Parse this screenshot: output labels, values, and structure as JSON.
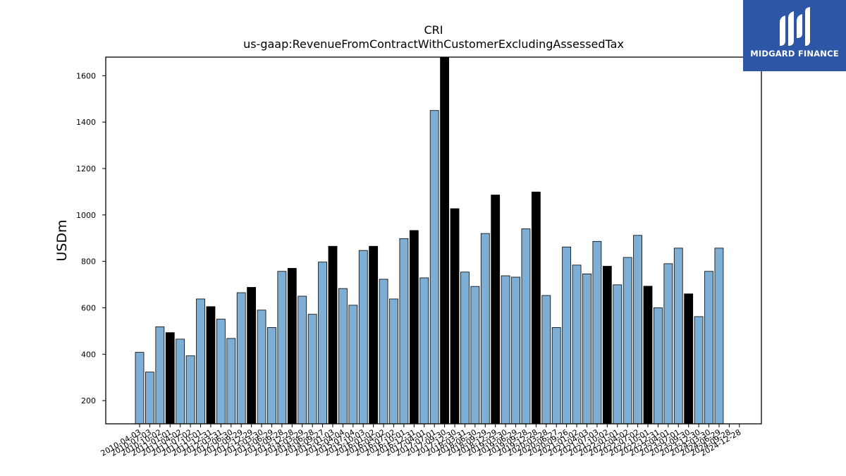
{
  "chart_data": {
    "type": "bar",
    "title": "CRI",
    "subtitle": "us-gaap:RevenueFromContractWithCustomerExcludingAssessedTax",
    "ylabel": "USDm",
    "xlabel": "",
    "ylim": [
      100,
      1680
    ],
    "yticks": [
      200,
      400,
      600,
      800,
      1000,
      1200,
      1400,
      1600
    ],
    "grid": false,
    "bar_color": "#7eaed3",
    "highlight_color": "#000000",
    "categories": [
      "2010-04-03",
      "2010-07-03",
      "2010-10-02",
      "2011-01-01",
      "2011-04-02",
      "2011-07-02",
      "2011-10-01",
      "2011-12-31",
      "2012-03-31",
      "2012-06-30",
      "2012-09-29",
      "2012-12-29",
      "2013-03-30",
      "2013-06-29",
      "2013-09-28",
      "2013-12-28",
      "2014-03-29",
      "2014-06-28",
      "2014-09-27",
      "2015-01-03",
      "2015-04-04",
      "2015-07-04",
      "2015-10-03",
      "2016-01-02",
      "2016-04-02",
      "2016-07-02",
      "2016-10-01",
      "2016-12-31",
      "2017-04-01",
      "2017-07-01",
      "2017-09-30",
      "2017-12-30",
      "2018-03-31",
      "2018-06-30",
      "2018-09-29",
      "2018-12-29",
      "2019-03-30",
      "2019-06-29",
      "2019-09-28",
      "2019-12-28",
      "2020-03-28",
      "2020-06-27",
      "2020-09-26",
      "2021-01-02",
      "2021-04-03",
      "2021-07-03",
      "2021-10-02",
      "2022-01-01",
      "2022-04-02",
      "2022-07-02",
      "2022-10-01",
      "2022-12-31",
      "2023-04-01",
      "2023-07-01",
      "2023-09-30",
      "2023-12-30",
      "2024-03-30",
      "2024-06-29",
      "2024-09-28",
      "2024-12-28"
    ],
    "values": [
      408,
      323,
      518,
      493,
      465,
      393,
      638,
      605,
      551,
      468,
      665,
      688,
      590,
      515,
      757,
      770,
      650,
      572,
      797,
      865,
      683,
      611,
      847,
      865,
      723,
      638,
      898,
      933,
      729,
      1450,
      1680,
      1027,
      754,
      692,
      920,
      1086,
      738,
      732,
      940,
      1099,
      653,
      515,
      862,
      784,
      746,
      886,
      779,
      699,
      817,
      912,
      693,
      600,
      790,
      857,
      660,
      562,
      757,
      857,
      0,
      0
    ],
    "highlight": [
      false,
      false,
      false,
      true,
      false,
      false,
      false,
      true,
      false,
      false,
      false,
      true,
      false,
      false,
      false,
      true,
      false,
      false,
      false,
      true,
      false,
      false,
      false,
      true,
      false,
      false,
      false,
      true,
      false,
      false,
      true,
      true,
      false,
      false,
      false,
      true,
      false,
      false,
      false,
      true,
      false,
      false,
      false,
      false,
      false,
      false,
      true,
      false,
      false,
      false,
      true,
      false,
      false,
      false,
      true,
      false,
      false,
      false,
      true,
      false
    ]
  },
  "logo": {
    "text": "MIDGARD FINANCE"
  }
}
